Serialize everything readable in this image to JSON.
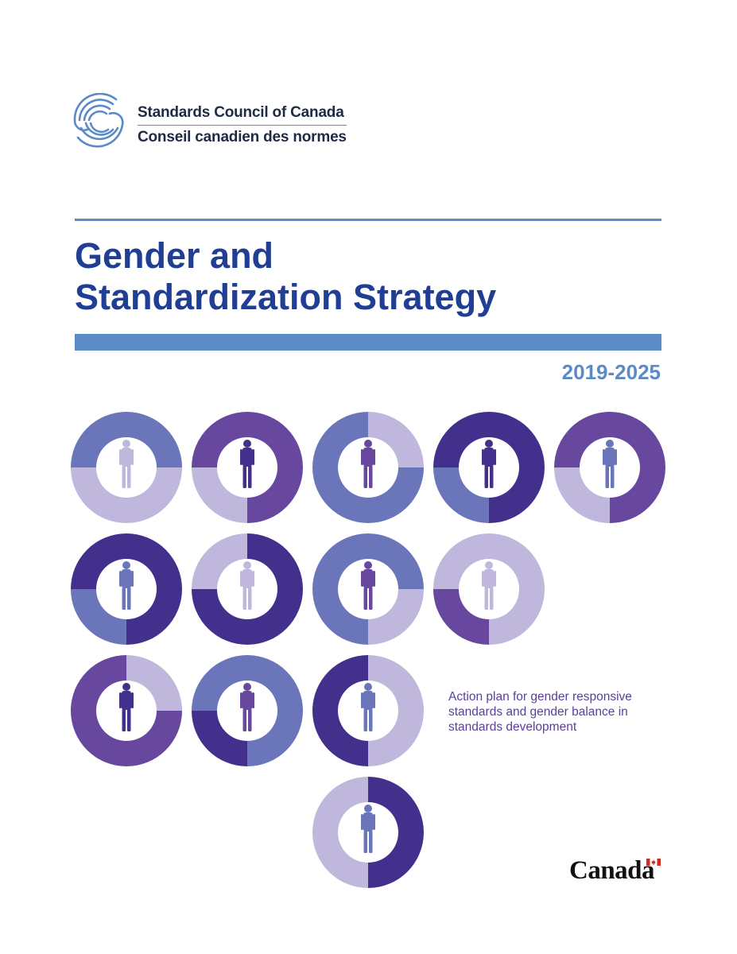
{
  "organization": {
    "name_en": "Standards Council of Canada",
    "name_fr": "Conseil canadien des normes",
    "logo_icon": "scc-swirl-logo-icon"
  },
  "title": {
    "line1": "Gender and",
    "line2": "Standardization Strategy"
  },
  "years": "2019-2025",
  "tagline": {
    "line1": "Action plan for gender responsive",
    "line2": "standards and gender balance in",
    "line3": "standards development"
  },
  "wordmark": {
    "text": "Canada",
    "flag_icon": "canada-flag-icon"
  },
  "colors": {
    "title": "#1f3e94",
    "accent_blue": "#5b8ac7",
    "tagline": "#5a3e9c",
    "donut_dark": "#42308c",
    "donut_purple": "#68489e",
    "donut_blue": "#6a76b9",
    "donut_light": "#c0b7dc"
  }
}
